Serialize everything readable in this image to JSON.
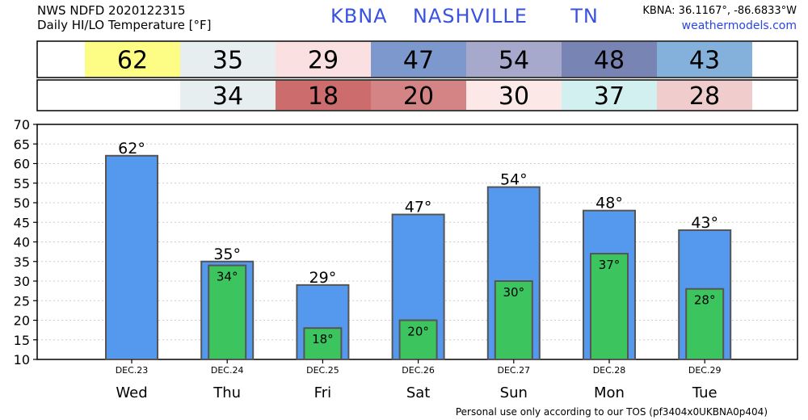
{
  "header": {
    "line1": "NWS NDFD 2020122315",
    "line2": "Daily HI/LO Temperature [°F]",
    "station_id": "KBNA",
    "station_name": "NASHVILLE",
    "state": "TN",
    "coords": "KBNA: 36.1167°, -86.6833°W",
    "site": "weathermodels.com"
  },
  "footer": "Personal use only according to our TOS (pf3404x0UKBNA0p404)",
  "colors": {
    "hi_bar": "#5599ee",
    "lo_bar": "#3cc45e",
    "bar_border": "#555555"
  },
  "chart_data": {
    "type": "bar",
    "categories": [
      "Wed",
      "Thu",
      "Fri",
      "Sat",
      "Sun",
      "Mon",
      "Tue"
    ],
    "dates": [
      "DEC.23",
      "DEC.24",
      "DEC.25",
      "DEC.26",
      "DEC.27",
      "DEC.28",
      "DEC.29"
    ],
    "series": [
      {
        "name": "HI",
        "values": [
          62,
          35,
          29,
          47,
          54,
          48,
          43
        ]
      },
      {
        "name": "LO",
        "values": [
          null,
          34,
          18,
          20,
          30,
          37,
          28
        ]
      }
    ],
    "hi_labels": [
      "62°",
      "35°",
      "29°",
      "47°",
      "54°",
      "48°",
      "43°"
    ],
    "lo_labels": [
      "",
      "34°",
      "18°",
      "20°",
      "30°",
      "37°",
      "28°"
    ],
    "hi_strip": [
      "62",
      "35",
      "29",
      "47",
      "54",
      "48",
      "43"
    ],
    "lo_strip": [
      "",
      "34",
      "18",
      "20",
      "30",
      "37",
      "28"
    ],
    "hi_strip_colors": [
      "#fdfc84",
      "#e6eef0",
      "#fae0e0",
      "#7c98cc",
      "#a6a8cc",
      "#7884b4",
      "#84b0dc"
    ],
    "lo_strip_colors": [
      "#ffffff",
      "#e6eef0",
      "#cc6c6c",
      "#d48484",
      "#fde8e8",
      "#d2f0f0",
      "#f0cccc"
    ],
    "yticks": [
      "10",
      "15",
      "20",
      "25",
      "30",
      "35",
      "40",
      "45",
      "50",
      "55",
      "60",
      "65",
      "70"
    ],
    "ylim": [
      10,
      70
    ],
    "grid": true
  }
}
